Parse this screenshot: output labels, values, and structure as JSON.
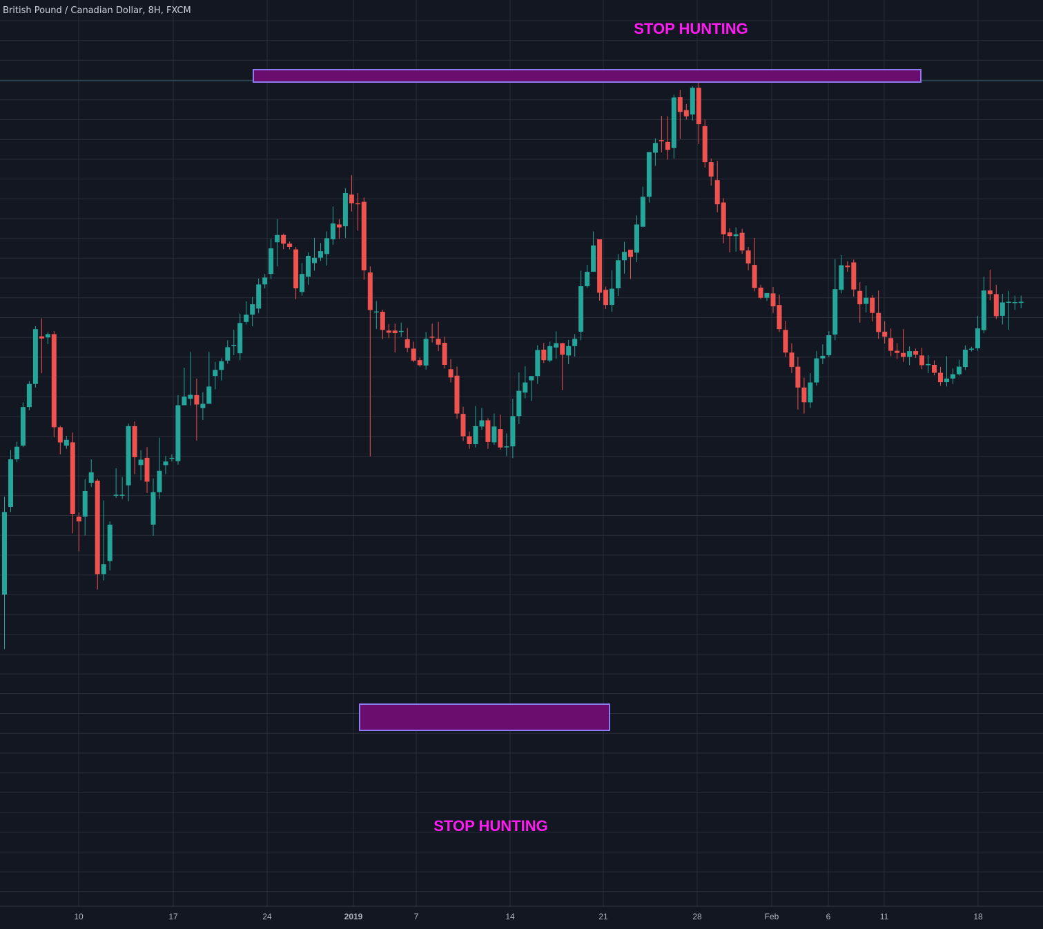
{
  "header": {
    "symbol_title": "British Pound / Canadian Dollar, 8H, FXCM"
  },
  "colors": {
    "background": "#131722",
    "grid": "#2a2e39",
    "up": "#26a69a",
    "down": "#ef5350",
    "zone_fill": "#6a0d6e",
    "zone_border": "#8c7cf0",
    "annotation": "#ff1cf3",
    "axis_text": "#b2b5be"
  },
  "annotations": {
    "top_label": "STOP HUNTING",
    "bottom_label": "STOP HUNTING"
  },
  "chart_data": {
    "type": "candlestick",
    "title": "British Pound / Canadian Dollar, 8H, FXCM",
    "xlabel": "",
    "ylabel": "",
    "ylim": [
      0,
      100
    ],
    "grid": true,
    "legend": "none",
    "x_tick_labels": [
      "10",
      "17",
      "24",
      "2019",
      "7",
      "14",
      "21",
      "28",
      "Feb",
      "6",
      "11",
      "18"
    ],
    "series": [
      {
        "values": [
          [
            58.1,
            81.0,
            43.0,
            85.2
          ],
          [
            82.4,
            95.6,
            81.0,
            98.2
          ],
          [
            95.6,
            99.1,
            94.8,
            100.5
          ],
          [
            99.4,
            110.1,
            99.0,
            111.4
          ],
          [
            110.1,
            116.5,
            109.2,
            117.3
          ],
          [
            116.5,
            131.7,
            115.5,
            132.5
          ],
          [
            129.7,
            129.1,
            119.5,
            134.7
          ],
          [
            129.4,
            130.3,
            127.6,
            130.8
          ],
          [
            130.3,
            104.5,
            101.7,
            131.1
          ],
          [
            104.5,
            100.3,
            97.0,
            104.9
          ],
          [
            99.4,
            101.0,
            98.5,
            102.1
          ],
          [
            100.3,
            80.5,
            75.1,
            103.0
          ],
          [
            79.7,
            78.4,
            70.1,
            80.9
          ],
          [
            79.7,
            86.8,
            74.5,
            90.1
          ],
          [
            89.1,
            92.0,
            88.0,
            95.6
          ],
          [
            89.7,
            63.8,
            59.5,
            90.2
          ],
          [
            63.8,
            66.5,
            62.0,
            84.2
          ],
          [
            67.4,
            77.5,
            64.8,
            78.4
          ],
          [
            85.6,
            85.8,
            84.9,
            93.1
          ],
          [
            85.6,
            85.8,
            84.6,
            90.7
          ],
          [
            88.4,
            104.8,
            84.0,
            105.5
          ],
          [
            104.8,
            96.2,
            91.5,
            106.1
          ],
          [
            94.0,
            95.5,
            89.8,
            98.1
          ],
          [
            96.0,
            89.4,
            86.3,
            99.0
          ],
          [
            77.5,
            86.5,
            74.4,
            90.3
          ],
          [
            86.5,
            92.4,
            84.6,
            101.6
          ],
          [
            94.0,
            95.0,
            91.5,
            96.5
          ],
          [
            96.0,
            96.0,
            95.0,
            97.0
          ],
          [
            95.1,
            110.6,
            94.1,
            113.4
          ],
          [
            110.6,
            113.0,
            111.0,
            121.0
          ],
          [
            112.4,
            113.5,
            110.5,
            125.4
          ],
          [
            113.4,
            110.8,
            100.8,
            118.0
          ],
          [
            109.8,
            111.0,
            106.5,
            114.2
          ],
          [
            111.0,
            115.8,
            111.0,
            125.4
          ],
          [
            118.7,
            120.4,
            115.0,
            122.6
          ],
          [
            120.4,
            122.8,
            117.5,
            123.6
          ],
          [
            123.0,
            126.7,
            122.1,
            128.6
          ],
          [
            127.0,
            127.3,
            124.5,
            131.5
          ],
          [
            125.0,
            133.4,
            123.1,
            136.0
          ],
          [
            133.7,
            135.7,
            133.0,
            139.4
          ],
          [
            135.7,
            138.6,
            132.5,
            140.6
          ],
          [
            137.4,
            144.1,
            136.1,
            145.7
          ],
          [
            144.1,
            146.0,
            143.0,
            147.0
          ],
          [
            147.0,
            154.1,
            145.6,
            156.7
          ],
          [
            155.8,
            157.8,
            149.1,
            162.2
          ],
          [
            157.8,
            155.4,
            153.9,
            158.2
          ],
          [
            155.4,
            154.5,
            153.8,
            156.0
          ],
          [
            153.8,
            143.0,
            140.0,
            154.5
          ],
          [
            142.0,
            147.0,
            141.0,
            150.0
          ],
          [
            146.2,
            152.0,
            144.0,
            153.0
          ],
          [
            150.0,
            151.5,
            147.9,
            157.0
          ],
          [
            151.5,
            153.3,
            150.6,
            155.6
          ],
          [
            152.5,
            156.9,
            149.3,
            158.8
          ],
          [
            156.6,
            161.0,
            155.1,
            165.7
          ],
          [
            160.7,
            159.9,
            156.7,
            162.2
          ],
          [
            160.2,
            169.4,
            157.0,
            170.8
          ],
          [
            169.0,
            166.6,
            164.3,
            174.4
          ],
          [
            166.6,
            166.4,
            159.0,
            169.4
          ],
          [
            167.0,
            148.0,
            145.4,
            168.2
          ],
          [
            147.4,
            137.0,
            96.4,
            149.1
          ],
          [
            136.6,
            136.6,
            131.7,
            139.5
          ],
          [
            136.5,
            131.5,
            128.9,
            137.1
          ],
          [
            131.3,
            130.7,
            129.2,
            133.1
          ],
          [
            131.3,
            130.6,
            125.2,
            133.2
          ],
          [
            131.0,
            131.2,
            129.5,
            133.5
          ],
          [
            128.9,
            126.5,
            125.3,
            132.0
          ],
          [
            126.3,
            123.0,
            122.5,
            128.2
          ],
          [
            123.1,
            121.7,
            121.3,
            123.8
          ],
          [
            121.6,
            129.0,
            120.5,
            130.9
          ],
          [
            129.6,
            129.4,
            128.0,
            133.2
          ],
          [
            129.0,
            127.4,
            125.6,
            133.7
          ],
          [
            127.9,
            121.8,
            120.8,
            129.6
          ],
          [
            120.6,
            118.3,
            116.9,
            123.4
          ],
          [
            118.8,
            108.3,
            106.8,
            121.3
          ],
          [
            108.2,
            102.0,
            100.7,
            110.2
          ],
          [
            102.0,
            99.8,
            98.5,
            103.3
          ],
          [
            99.8,
            104.8,
            98.9,
            110.4
          ],
          [
            104.7,
            106.4,
            103.8,
            109.8
          ],
          [
            106.4,
            100.4,
            98.5,
            107.0
          ],
          [
            100.3,
            104.7,
            99.6,
            108.3
          ],
          [
            104.0,
            98.9,
            98.3,
            108.0
          ],
          [
            99.0,
            99.2,
            96.5,
            102.8
          ],
          [
            99.2,
            107.6,
            95.9,
            112.4
          ],
          [
            107.6,
            114.6,
            105.4,
            119.7
          ],
          [
            114.1,
            116.9,
            112.5,
            121.4
          ],
          [
            117.5,
            118.7,
            111.8,
            117.6
          ],
          [
            118.7,
            125.9,
            116.5,
            127.2
          ],
          [
            126.0,
            123.1,
            122.3,
            127.9
          ],
          [
            123.0,
            127.0,
            122.5,
            128.2
          ],
          [
            126.6,
            127.8,
            123.5,
            131.1
          ],
          [
            127.8,
            124.6,
            114.8,
            127.9
          ],
          [
            124.4,
            127.0,
            122.0,
            128.7
          ],
          [
            127.0,
            129.0,
            124.1,
            130.3
          ],
          [
            131.0,
            143.6,
            128.6,
            147.9
          ],
          [
            143.6,
            147.6,
            143.1,
            149.5
          ],
          [
            147.6,
            154.9,
            147.6,
            158.8
          ],
          [
            156.6,
            141.8,
            139.6,
            156.6
          ],
          [
            142.6,
            138.4,
            137.3,
            143.5
          ],
          [
            138.4,
            142.9,
            136.5,
            148.0
          ],
          [
            143.0,
            150.8,
            140.9,
            152.5
          ],
          [
            150.8,
            153.1,
            147.1,
            155.9
          ],
          [
            153.7,
            151.7,
            145.6,
            152.7
          ],
          [
            152.9,
            160.7,
            150.3,
            163.2
          ],
          [
            160.1,
            168.4,
            159.9,
            171.2
          ],
          [
            168.4,
            180.8,
            166.8,
            180.6
          ],
          [
            180.6,
            183.3,
            177.0,
            184.6
          ],
          [
            184.1,
            183.8,
            180.7,
            190.8
          ],
          [
            183.6,
            181.4,
            178.7,
            190.7
          ],
          [
            181.9,
            195.9,
            179.0,
            196.7
          ],
          [
            196.0,
            191.9,
            184.5,
            198.0
          ],
          [
            192.4,
            190.7,
            189.8,
            194.1
          ],
          [
            191.2,
            198.6,
            189.5,
            199.0
          ],
          [
            198.6,
            188.5,
            183.0,
            200.0
          ],
          [
            188.0,
            178.0,
            176.5,
            189.8
          ],
          [
            178.0,
            174.0,
            171.5,
            179.0
          ],
          [
            173.0,
            166.3,
            164.1,
            178.3
          ],
          [
            166.8,
            158.0,
            155.5,
            168.0
          ],
          [
            158.5,
            157.5,
            153.0,
            159.7
          ],
          [
            157.5,
            158.0,
            153.2,
            159.9
          ],
          [
            158.4,
            153.5,
            152.6,
            159.5
          ],
          [
            153.5,
            149.9,
            148.0,
            154.5
          ],
          [
            149.5,
            143.1,
            142.2,
            157.0
          ],
          [
            143.2,
            140.4,
            140.0,
            144.0
          ],
          [
            140.4,
            141.7,
            139.5,
            141.6
          ],
          [
            141.6,
            138.0,
            136.2,
            143.4
          ],
          [
            138.4,
            131.7,
            130.9,
            141.3
          ],
          [
            131.5,
            125.2,
            124.0,
            134.0
          ],
          [
            125.2,
            121.2,
            119.5,
            127.8
          ],
          [
            121.3,
            115.5,
            109.4,
            124.0
          ],
          [
            115.5,
            111.4,
            108.3,
            118.2
          ],
          [
            111.4,
            116.9,
            109.8,
            119.5
          ],
          [
            116.9,
            123.6,
            116.0,
            125.6
          ],
          [
            123.6,
            124.3,
            122.0,
            127.5
          ],
          [
            124.5,
            130.0,
            123.9,
            131.1
          ],
          [
            130.2,
            142.8,
            128.6,
            151.1
          ],
          [
            142.6,
            149.4,
            141.6,
            152.2
          ],
          [
            149.3,
            148.9,
            147.6,
            150.5
          ],
          [
            150.2,
            142.7,
            140.7,
            151.0
          ],
          [
            142.3,
            138.6,
            133.5,
            144.7
          ],
          [
            138.7,
            140.4,
            136.3,
            143.8
          ],
          [
            140.4,
            136.2,
            133.8,
            141.1
          ],
          [
            136.2,
            130.9,
            129.0,
            142.4
          ],
          [
            131.0,
            129.6,
            127.7,
            133.9
          ],
          [
            129.2,
            125.7,
            124.2,
            131.9
          ],
          [
            125.7,
            125.1,
            123.4,
            127.8
          ],
          [
            125.1,
            124.0,
            122.6,
            131.7
          ],
          [
            124.0,
            125.6,
            121.7,
            126.9
          ],
          [
            125.6,
            124.6,
            123.7,
            126.3
          ],
          [
            124.4,
            121.7,
            120.6,
            126.5
          ],
          [
            121.7,
            122.0,
            119.5,
            124.5
          ],
          [
            121.8,
            119.6,
            118.9,
            123.0
          ],
          [
            119.6,
            117.0,
            116.0,
            121.2
          ],
          [
            117.0,
            118.0,
            115.8,
            124.2
          ],
          [
            118.0,
            119.2,
            116.5,
            120.8
          ],
          [
            119.2,
            121.3,
            118.8,
            123.2
          ],
          [
            121.2,
            126.0,
            120.4,
            127.2
          ],
          [
            126.0,
            126.3,
            125.5,
            126.8
          ],
          [
            126.4,
            131.9,
            125.7,
            135.4
          ],
          [
            131.4,
            142.4,
            130.6,
            146.2
          ],
          [
            142.4,
            141.4,
            139.7,
            148.2
          ],
          [
            141.4,
            135.3,
            134.5,
            144.0
          ],
          [
            135.4,
            139.1,
            133.0,
            141.5
          ],
          [
            139.1,
            139.3,
            131.5,
            142.3
          ],
          [
            139.0,
            139.2,
            137.0,
            141.0
          ],
          [
            139.0,
            139.3,
            137.5,
            141.0
          ]
        ]
      }
    ]
  }
}
